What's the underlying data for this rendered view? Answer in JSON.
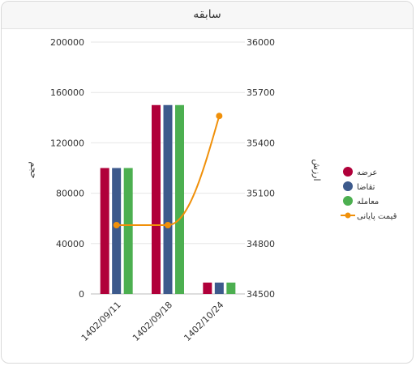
{
  "panel": {
    "title": "سابقه"
  },
  "chart_data": {
    "type": "bar",
    "categories": [
      "1402/09/11",
      "1402/09/18",
      "1402/10/24"
    ],
    "series": [
      {
        "name": "عرضه",
        "type": "bar",
        "color": "#b0003a",
        "values": [
          100000,
          150000,
          9000
        ]
      },
      {
        "name": "تقاضا",
        "type": "bar",
        "color": "#3d5a8c",
        "values": [
          100000,
          150000,
          9000
        ]
      },
      {
        "name": "معامله",
        "type": "bar",
        "color": "#4caf50",
        "values": [
          100000,
          150000,
          9000
        ]
      },
      {
        "name": "قیمت پایانی",
        "type": "line",
        "color": "#f0900a",
        "values": [
          34910,
          34910,
          35560
        ]
      }
    ],
    "y_left": {
      "label": "حجم",
      "min": 0,
      "max": 200000,
      "ticks": [
        "200000",
        "160000",
        "120000",
        "80000",
        "40000",
        "0"
      ]
    },
    "y_right": {
      "label": "ارزش",
      "min": 34500,
      "max": 36000,
      "ticks": [
        "36000",
        "35700",
        "35400",
        "35100",
        "34800",
        "34500"
      ]
    },
    "grid": true,
    "legend_position": "right"
  }
}
